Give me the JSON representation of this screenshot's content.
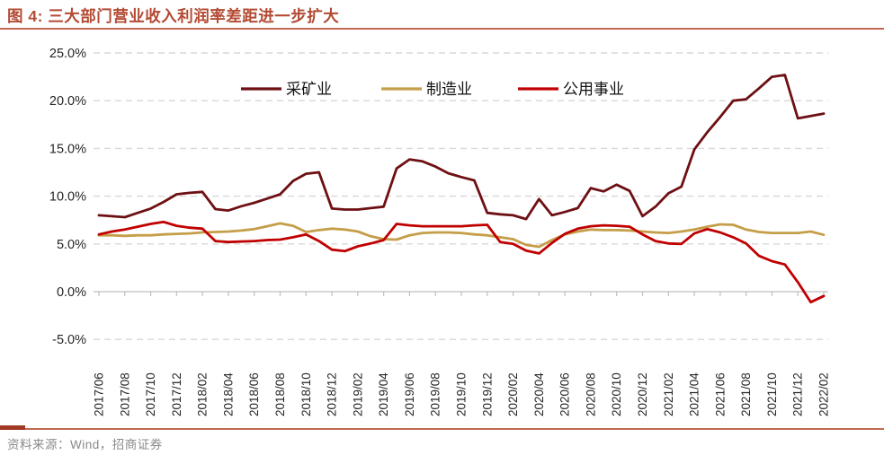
{
  "figure": {
    "title": "图 4: 三大部门营业收入利润率差距进一步扩大",
    "source": "资料来源：Wind，招商证券"
  },
  "chart_data": {
    "type": "line",
    "title": "三大部门营业收入利润率差距进一步扩大",
    "unit": "percent",
    "ylim": [
      -5,
      25
    ],
    "grid": "dashed-horizontal",
    "legend_position": "top-center",
    "y_tick_labels": [
      "25.0%",
      "20.0%",
      "15.0%",
      "10.0%",
      "5.0%",
      "0.0%",
      "-5.0%"
    ],
    "y_tick_values": [
      25,
      20,
      15,
      10,
      5,
      0,
      -5
    ],
    "x_tick_labels": [
      "2017/06",
      "2017/08",
      "2017/10",
      "2017/12",
      "2018/02",
      "2018/04",
      "2018/06",
      "2018/08",
      "2018/10",
      "2018/12",
      "2019/02",
      "2019/04",
      "2019/06",
      "2019/08",
      "2019/10",
      "2019/12",
      "2020/02",
      "2020/04",
      "2020/06",
      "2020/08",
      "2020/10",
      "2020/12",
      "2021/02",
      "2021/04",
      "2021/06",
      "2021/08",
      "2021/10",
      "2021/12",
      "2022/02"
    ],
    "x_monthly_categories": [
      "2017/06",
      "2017/07",
      "2017/08",
      "2017/09",
      "2017/10",
      "2017/11",
      "2017/12",
      "2018/01",
      "2018/02",
      "2018/03",
      "2018/04",
      "2018/05",
      "2018/06",
      "2018/07",
      "2018/08",
      "2018/09",
      "2018/10",
      "2018/11",
      "2018/12",
      "2019/01",
      "2019/02",
      "2019/03",
      "2019/04",
      "2019/05",
      "2019/06",
      "2019/07",
      "2019/08",
      "2019/09",
      "2019/10",
      "2019/11",
      "2019/12",
      "2020/01",
      "2020/02",
      "2020/03",
      "2020/04",
      "2020/05",
      "2020/06",
      "2020/07",
      "2020/08",
      "2020/09",
      "2020/10",
      "2020/11",
      "2020/12",
      "2021/01",
      "2021/02",
      "2021/03",
      "2021/04",
      "2021/05",
      "2021/06",
      "2021/07",
      "2021/08",
      "2021/09",
      "2021/10",
      "2021/11",
      "2021/12",
      "2022/01",
      "2022/02"
    ],
    "series": [
      {
        "name": "采矿业",
        "color": "#6e1013",
        "values": [
          8.0,
          7.9,
          7.8,
          8.25,
          8.7,
          9.4,
          10.2,
          10.35,
          10.45,
          8.65,
          8.5,
          8.95,
          9.3,
          9.75,
          10.2,
          11.6,
          12.35,
          12.5,
          8.7,
          8.6,
          8.6,
          8.75,
          8.9,
          12.9,
          13.85,
          13.65,
          13.1,
          12.4,
          12.0,
          11.65,
          8.25,
          8.1,
          8.0,
          7.6,
          9.7,
          8.0,
          8.35,
          8.75,
          10.85,
          10.5,
          11.2,
          10.55,
          7.9,
          8.9,
          10.3,
          11.0,
          14.9,
          16.7,
          18.3,
          20.0,
          20.15,
          21.3,
          22.5,
          22.7,
          18.15,
          18.4,
          18.65
        ]
      },
      {
        "name": "制造业",
        "color": "#c49e48",
        "values": [
          5.9,
          5.9,
          5.85,
          5.9,
          5.9,
          6.0,
          6.05,
          6.1,
          6.2,
          6.25,
          6.3,
          6.4,
          6.55,
          6.85,
          7.15,
          6.9,
          6.25,
          6.45,
          6.6,
          6.5,
          6.3,
          5.8,
          5.5,
          5.45,
          5.9,
          6.15,
          6.2,
          6.2,
          6.15,
          6.0,
          5.9,
          5.7,
          5.5,
          4.9,
          4.7,
          5.4,
          6.0,
          6.3,
          6.5,
          6.45,
          6.45,
          6.4,
          6.3,
          6.2,
          6.15,
          6.3,
          6.5,
          6.8,
          7.05,
          7.0,
          6.5,
          6.25,
          6.15,
          6.15,
          6.15,
          6.3,
          5.95
        ]
      },
      {
        "name": "公用事业",
        "color": "#c00000",
        "values": [
          6.0,
          6.3,
          6.5,
          6.8,
          7.1,
          7.3,
          6.9,
          6.7,
          6.6,
          5.3,
          5.2,
          5.25,
          5.3,
          5.4,
          5.45,
          5.7,
          6.0,
          5.3,
          4.4,
          4.25,
          4.75,
          5.05,
          5.4,
          7.1,
          6.95,
          6.85,
          6.85,
          6.85,
          6.85,
          6.95,
          7.0,
          5.2,
          5.0,
          4.3,
          4.0,
          5.1,
          6.05,
          6.6,
          6.85,
          6.95,
          6.9,
          6.8,
          6.0,
          5.3,
          5.05,
          5.0,
          6.1,
          6.55,
          6.2,
          5.7,
          5.05,
          3.75,
          3.2,
          2.85,
          1.0,
          -1.1,
          -0.45
        ]
      }
    ]
  },
  "colors": {
    "title": "#b34a33",
    "rule": "#c06a52",
    "rule_thick": "#a03a24",
    "gridline": "#d8d8d8",
    "axis_line": "#bfbfbf",
    "tick_label": "#262626",
    "source_text": "#8a8a8a"
  }
}
